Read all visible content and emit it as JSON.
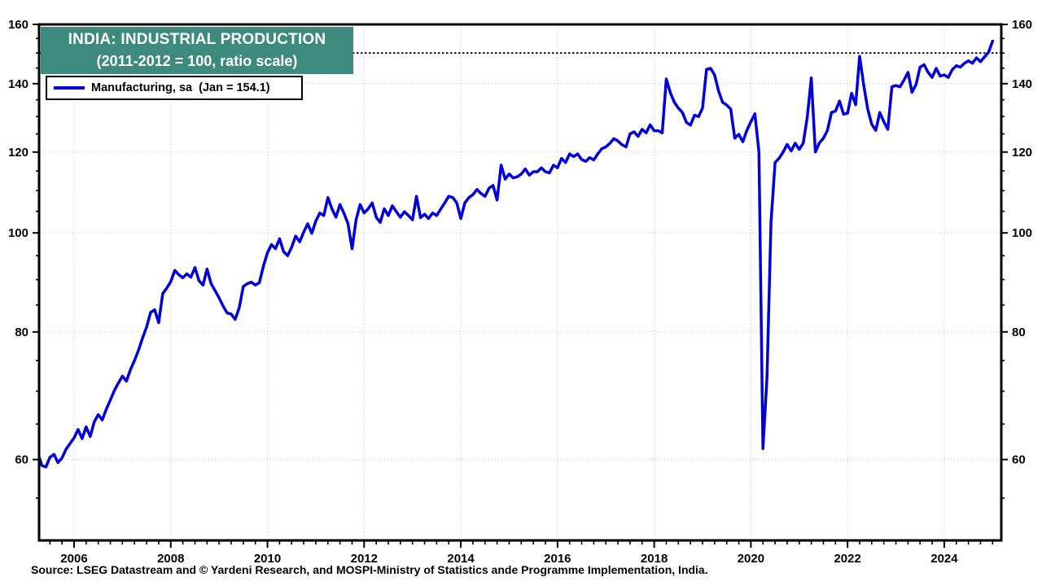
{
  "title": {
    "line1": "INDIA: INDUSTRIAL PRODUCTION",
    "line2": "(2011-2012 = 100, ratio scale)"
  },
  "legend": {
    "label": "Manufacturing, sa  (Jan = 154.1)"
  },
  "source": "Source: LSEG Datastream and © Yardeni Research, and MOSPI-Ministry of Statistics ande Programme Implementation, India.",
  "colors": {
    "line": "#0000DD",
    "title_bg": "#3E8A7E",
    "title_text": "#FFFFFF",
    "grid": "#C6C6C6",
    "ref_line": "#141414",
    "axis": "#000000",
    "label_text": "#000000"
  },
  "chart_data": {
    "type": "line",
    "title": "INDIA: INDUSTRIAL PRODUCTION (2011-2012 = 100, ratio scale)",
    "series_name": "Manufacturing, sa",
    "latest_point_label": "Jan = 154.1",
    "y_scale": "log",
    "y_range": [
      50,
      160
    ],
    "y_ticks_major": [
      60,
      80,
      100,
      120,
      140,
      160
    ],
    "y_ticks_minor": [
      55,
      65,
      70,
      75,
      85,
      90,
      95,
      105,
      110,
      115,
      125,
      130,
      135,
      145,
      150,
      155
    ],
    "y_gridlines": [
      60,
      80,
      100,
      120,
      140
    ],
    "reference_line": 150,
    "x_range": [
      2005.276,
      2025.18
    ],
    "x_ticks_labeled": [
      2006,
      2008,
      2010,
      2012,
      2014,
      2016,
      2018,
      2020,
      2022,
      2024
    ],
    "x_minor_tick_step": 0.25,
    "grid": true,
    "legend_position": "top-left",
    "series_start": {
      "year": 2005,
      "month": 4
    },
    "frequency": "monthly",
    "values": [
      60.2,
      59.2,
      59.0,
      60.3,
      60.7,
      59.6,
      60.2,
      61.4,
      62.2,
      63.0,
      64.2,
      62.9,
      64.6,
      63.2,
      65.3,
      66.4,
      65.6,
      67.2,
      68.6,
      70.1,
      71.3,
      72.4,
      71.6,
      73.5,
      75.0,
      76.8,
      78.9,
      80.9,
      83.6,
      84.1,
      81.7,
      87.2,
      88.3,
      89.6,
      91.9,
      91.0,
      90.4,
      91.2,
      90.5,
      92.5,
      89.8,
      88.9,
      92.2,
      89.2,
      87.8,
      86.4,
      84.8,
      83.5,
      83.3,
      82.3,
      84.5,
      88.6,
      89.2,
      89.5,
      88.9,
      89.4,
      92.8,
      95.6,
      97.4,
      96.5,
      98.7,
      95.9,
      95.0,
      96.8,
      99.3,
      98.0,
      100.2,
      102.1,
      99.9,
      102.7,
      104.6,
      104.0,
      108.3,
      105.6,
      103.6,
      106.6,
      104.5,
      102.1,
      96.5,
      103.0,
      106.6,
      104.6,
      105.6,
      107.0,
      103.6,
      102.4,
      105.6,
      104.0,
      106.3,
      104.9,
      103.6,
      104.9,
      104.0,
      103.0,
      108.6,
      103.5,
      104.3,
      103.3,
      104.6,
      104.0,
      105.5,
      107.0,
      108.6,
      108.3,
      107.0,
      103.3,
      107.0,
      108.3,
      109.0,
      110.3,
      109.3,
      108.6,
      110.6,
      111.3,
      107.7,
      116.5,
      112.9,
      114.2,
      113.2,
      113.5,
      114.2,
      115.5,
      113.9,
      114.8,
      114.8,
      115.8,
      114.8,
      114.5,
      116.5,
      115.8,
      118.3,
      117.2,
      119.5,
      118.8,
      119.5,
      118.0,
      117.5,
      118.5,
      117.9,
      119.5,
      120.9,
      121.4,
      122.4,
      123.7,
      123.0,
      122.0,
      121.4,
      125.0,
      125.6,
      124.3,
      126.3,
      125.3,
      127.6,
      125.9,
      125.9,
      125.3,
      141.5,
      137.2,
      134.2,
      132.5,
      131.2,
      128.3,
      127.5,
      130.4,
      130.0,
      132.5,
      144.6,
      144.9,
      142.8,
      137.6,
      134.2,
      133.4,
      132.2,
      123.8,
      124.9,
      122.8,
      126.0,
      128.5,
      130.8,
      120.0,
      61.5,
      72.3,
      102.4,
      117.2,
      118.3,
      120.0,
      122.1,
      120.3,
      122.4,
      120.7,
      122.4,
      129.9,
      141.8,
      120.0,
      122.5,
      123.8,
      126.0,
      131.2,
      131.6,
      134.6,
      130.7,
      131.0,
      137.0,
      133.5,
      148.9,
      139.5,
      132.2,
      127.8,
      126.0,
      131.2,
      128.5,
      126.3,
      139.0,
      139.4,
      139.0,
      141.1,
      143.6,
      137.3,
      139.8,
      145.3,
      146.1,
      143.6,
      142.0,
      144.9,
      142.4,
      142.8,
      142.0,
      144.5,
      145.8,
      145.3,
      146.6,
      147.4,
      146.6,
      148.4,
      147.1,
      148.7,
      150.3,
      154.1
    ]
  }
}
